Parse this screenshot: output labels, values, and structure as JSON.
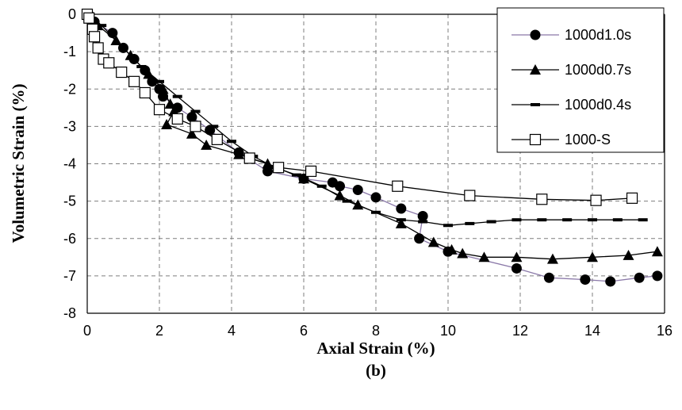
{
  "chart_data": {
    "type": "line",
    "xlabel": "Axial Strain (%)",
    "ylabel": "Volumetric Strain (%)",
    "caption": "(b)",
    "xlim": [
      0,
      16
    ],
    "ylim": [
      -8,
      0
    ],
    "xticks": [
      0,
      2,
      4,
      6,
      8,
      10,
      12,
      14,
      16
    ],
    "yticks": [
      0,
      -1,
      -2,
      -3,
      -4,
      -5,
      -6,
      -7,
      -8
    ],
    "grid": true,
    "legend_position": "top-right",
    "series": [
      {
        "name": "1000d1.0s",
        "marker": "circle",
        "line_color": "#8a78a8",
        "x": [
          0.05,
          0.2,
          0.7,
          1.0,
          1.3,
          1.6,
          1.8,
          2.0,
          2.1,
          2.5,
          2.9,
          3.4,
          4.2,
          5.0,
          6.0,
          6.8,
          7.0,
          7.5,
          8.0,
          8.7,
          9.3,
          9.2,
          10.0,
          11.9,
          12.8,
          13.8,
          14.5,
          15.3,
          15.8
        ],
        "y": [
          -0.02,
          -0.2,
          -0.5,
          -0.9,
          -1.2,
          -1.5,
          -1.8,
          -2.0,
          -2.2,
          -2.5,
          -2.75,
          -3.1,
          -3.7,
          -4.2,
          -4.4,
          -4.5,
          -4.6,
          -4.7,
          -4.9,
          -5.2,
          -5.4,
          -6.0,
          -6.35,
          -6.8,
          -7.05,
          -7.1,
          -7.15,
          -7.05,
          -7.0
        ]
      },
      {
        "name": "1000d0.7s",
        "marker": "triangle",
        "line_color": "#000000",
        "x": [
          0.05,
          0.3,
          0.8,
          1.2,
          1.7,
          2.1,
          2.3,
          2.4,
          2.2,
          2.9,
          3.3,
          4.2,
          5.0,
          6.0,
          7.0,
          7.5,
          8.7,
          9.6,
          10.1,
          10.4,
          11.0,
          11.9,
          12.9,
          14.0,
          15.0,
          15.8
        ],
        "y": [
          -0.02,
          -0.3,
          -0.7,
          -1.1,
          -1.6,
          -2.0,
          -2.4,
          -2.6,
          -2.95,
          -3.2,
          -3.5,
          -3.75,
          -4.0,
          -4.4,
          -4.85,
          -5.1,
          -5.6,
          -6.1,
          -6.3,
          -6.4,
          -6.5,
          -6.5,
          -6.55,
          -6.5,
          -6.45,
          -6.35
        ]
      },
      {
        "name": "1000d0.4s",
        "marker": "dash",
        "line_color": "#000000",
        "x": [
          0.05,
          0.4,
          1.0,
          1.5,
          2.0,
          2.5,
          3.0,
          3.5,
          4.0,
          4.6,
          5.2,
          5.8,
          6.5,
          7.2,
          8.0,
          8.7,
          9.3,
          10.0,
          10.6,
          11.2,
          11.9,
          12.6,
          13.3,
          14.0,
          14.7,
          15.4
        ],
        "y": [
          -0.02,
          -0.3,
          -0.9,
          -1.4,
          -1.8,
          -2.2,
          -2.6,
          -3.0,
          -3.4,
          -3.8,
          -4.1,
          -4.3,
          -4.6,
          -5.0,
          -5.3,
          -5.5,
          -5.55,
          -5.65,
          -5.6,
          -5.55,
          -5.5,
          -5.5,
          -5.5,
          -5.5,
          -5.5,
          -5.5
        ]
      },
      {
        "name": "1000-S",
        "marker": "open-square",
        "line_color": "#000000",
        "x": [
          0.0,
          0.05,
          0.15,
          0.2,
          0.3,
          0.45,
          0.6,
          0.95,
          1.3,
          1.6,
          2.0,
          2.5,
          3.0,
          3.6,
          4.5,
          5.3,
          6.2,
          8.6,
          10.6,
          12.6,
          14.1,
          15.1
        ],
        "y": [
          0.0,
          -0.1,
          -0.4,
          -0.6,
          -0.9,
          -1.2,
          -1.3,
          -1.55,
          -1.8,
          -2.1,
          -2.55,
          -2.8,
          -3.0,
          -3.35,
          -3.85,
          -4.1,
          -4.2,
          -4.6,
          -4.85,
          -4.95,
          -4.98,
          -4.92
        ]
      }
    ]
  }
}
